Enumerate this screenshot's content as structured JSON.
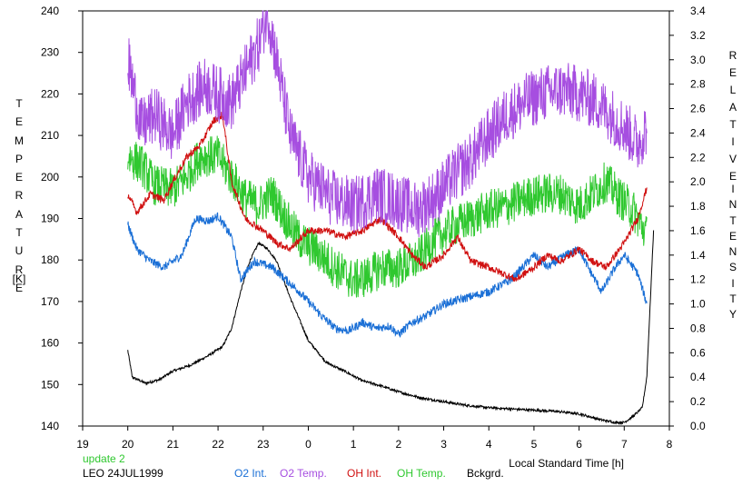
{
  "chart_data": {
    "type": "line",
    "x_axis": {
      "label": "Local Standard Time [h]",
      "tick_labels": [
        "19",
        "20",
        "21",
        "22",
        "23",
        "0",
        "1",
        "2",
        "3",
        "4",
        "5",
        "6",
        "7",
        "8"
      ],
      "range": [
        19,
        32
      ]
    },
    "left_axis": {
      "label_chars": [
        "T",
        "E",
        "M",
        "P",
        "E",
        "R",
        "A",
        "T",
        "U",
        "R",
        "E"
      ],
      "unit": "[K]",
      "range": [
        140,
        240
      ],
      "ticks": [
        140,
        150,
        160,
        170,
        180,
        190,
        200,
        210,
        220,
        230,
        240
      ]
    },
    "right_axis": {
      "label_word1": [
        "R",
        "E",
        "L",
        "A",
        "T",
        "I",
        "V",
        "E"
      ],
      "label_word2": [
        "I",
        "N",
        "T",
        "E",
        "N",
        "S",
        "I",
        "T",
        "Y"
      ],
      "range": [
        0.0,
        3.4
      ],
      "ticks": [
        "0.0",
        "0.2",
        "0.4",
        "0.6",
        "0.8",
        "1.0",
        "1.2",
        "1.4",
        "1.6",
        "1.8",
        "2.0",
        "2.2",
        "2.4",
        "2.6",
        "2.8",
        "3.0",
        "3.2",
        "3.4"
      ]
    },
    "series": [
      {
        "name": "O2 Int.",
        "axis": "right",
        "color": "#1a6fd6",
        "noise": 0.035,
        "x": [
          20.0,
          20.2,
          20.5,
          20.8,
          21.2,
          21.5,
          21.8,
          22.0,
          22.3,
          22.5,
          22.8,
          23.2,
          23.5,
          23.8,
          24.3,
          24.6,
          24.9,
          25.2,
          25.5,
          25.8,
          26.0,
          26.3,
          26.6,
          27.0,
          27.5,
          28.0,
          28.5,
          29.0,
          29.3,
          29.7,
          30.0,
          30.2,
          30.5,
          30.8,
          31.0,
          31.3,
          31.5
        ],
        "values": [
          1.65,
          1.45,
          1.35,
          1.3,
          1.4,
          1.7,
          1.68,
          1.72,
          1.55,
          1.2,
          1.35,
          1.3,
          1.2,
          1.1,
          0.9,
          0.8,
          0.78,
          0.85,
          0.8,
          0.82,
          0.75,
          0.85,
          0.9,
          1.0,
          1.05,
          1.1,
          1.2,
          1.4,
          1.3,
          1.4,
          1.45,
          1.3,
          1.1,
          1.3,
          1.4,
          1.25,
          1.0
        ]
      },
      {
        "name": "O2 Temp.",
        "axis": "left",
        "color": "#a64ee0",
        "noise": 7,
        "x": [
          20.0,
          20.3,
          20.6,
          21.0,
          21.3,
          21.7,
          22.0,
          22.3,
          22.6,
          22.9,
          23.1,
          23.3,
          23.6,
          24.0,
          24.5,
          25.0,
          25.5,
          26.0,
          26.4,
          26.8,
          27.2,
          27.6,
          28.0,
          28.4,
          28.8,
          29.2,
          29.6,
          30.0,
          30.4,
          30.7,
          31.0,
          31.3,
          31.5
        ],
        "values": [
          228,
          212,
          215,
          210,
          218,
          222,
          220,
          218,
          225,
          232,
          240,
          228,
          210,
          200,
          195,
          193,
          196,
          194,
          192,
          195,
          200,
          204,
          210,
          215,
          218,
          220,
          221,
          220,
          218,
          215,
          212,
          208,
          212
        ]
      },
      {
        "name": "OH Int.",
        "axis": "right",
        "color": "#d01010",
        "noise": 0.03,
        "x": [
          20.0,
          20.2,
          20.5,
          20.8,
          21.0,
          21.3,
          21.6,
          21.9,
          22.1,
          22.3,
          22.6,
          23.0,
          23.3,
          23.6,
          24.0,
          24.4,
          24.8,
          25.2,
          25.6,
          26.0,
          26.3,
          26.6,
          27.0,
          27.3,
          27.6,
          28.0,
          28.3,
          28.6,
          29.0,
          29.3,
          29.6,
          30.0,
          30.3,
          30.6,
          31.0,
          31.3,
          31.5
        ],
        "values": [
          1.9,
          1.75,
          1.9,
          1.85,
          2.0,
          2.2,
          2.3,
          2.5,
          2.55,
          2.0,
          1.7,
          1.6,
          1.5,
          1.45,
          1.6,
          1.6,
          1.55,
          1.6,
          1.7,
          1.55,
          1.4,
          1.3,
          1.4,
          1.55,
          1.35,
          1.3,
          1.25,
          1.2,
          1.3,
          1.4,
          1.35,
          1.45,
          1.35,
          1.3,
          1.5,
          1.7,
          1.95
        ]
      },
      {
        "name": "OH Temp.",
        "axis": "left",
        "color": "#2fc82f",
        "noise": 5,
        "x": [
          20.0,
          20.3,
          20.6,
          21.0,
          21.3,
          21.6,
          22.0,
          22.3,
          22.6,
          22.9,
          23.2,
          23.5,
          23.8,
          24.2,
          24.6,
          25.0,
          25.3,
          25.6,
          26.0,
          26.4,
          26.8,
          27.2,
          27.6,
          28.0,
          28.4,
          28.8,
          29.2,
          29.6,
          30.0,
          30.3,
          30.6,
          30.9,
          31.2,
          31.5
        ],
        "values": [
          205,
          203,
          198,
          197,
          200,
          205,
          205,
          200,
          195,
          193,
          196,
          190,
          185,
          182,
          178,
          175,
          176,
          178,
          178,
          180,
          185,
          188,
          190,
          192,
          193,
          195,
          196,
          196,
          193,
          196,
          199,
          195,
          192,
          186
        ]
      },
      {
        "name": "Bckgrd.",
        "axis": "right",
        "color": "#000000",
        "noise": 0.01,
        "x": [
          20.0,
          20.1,
          20.4,
          20.7,
          21.0,
          21.4,
          21.8,
          22.1,
          22.3,
          22.5,
          22.7,
          22.9,
          23.1,
          23.3,
          23.6,
          24.0,
          24.4,
          24.8,
          25.2,
          25.6,
          26.0,
          26.5,
          27.0,
          27.5,
          28.0,
          28.5,
          29.0,
          29.5,
          30.0,
          30.5,
          30.8,
          31.0,
          31.2,
          31.4,
          31.5,
          31.6,
          31.65
        ],
        "values": [
          0.62,
          0.4,
          0.35,
          0.38,
          0.45,
          0.5,
          0.58,
          0.65,
          0.8,
          1.1,
          1.35,
          1.5,
          1.45,
          1.35,
          1.05,
          0.7,
          0.52,
          0.45,
          0.37,
          0.33,
          0.28,
          0.23,
          0.2,
          0.17,
          0.15,
          0.14,
          0.13,
          0.12,
          0.1,
          0.05,
          0.03,
          0.03,
          0.08,
          0.15,
          0.4,
          1.2,
          1.6
        ]
      }
    ]
  },
  "footer": {
    "update": "update 2",
    "update_color": "#2fc82f",
    "station_date": "LEO 24JUL1999"
  }
}
